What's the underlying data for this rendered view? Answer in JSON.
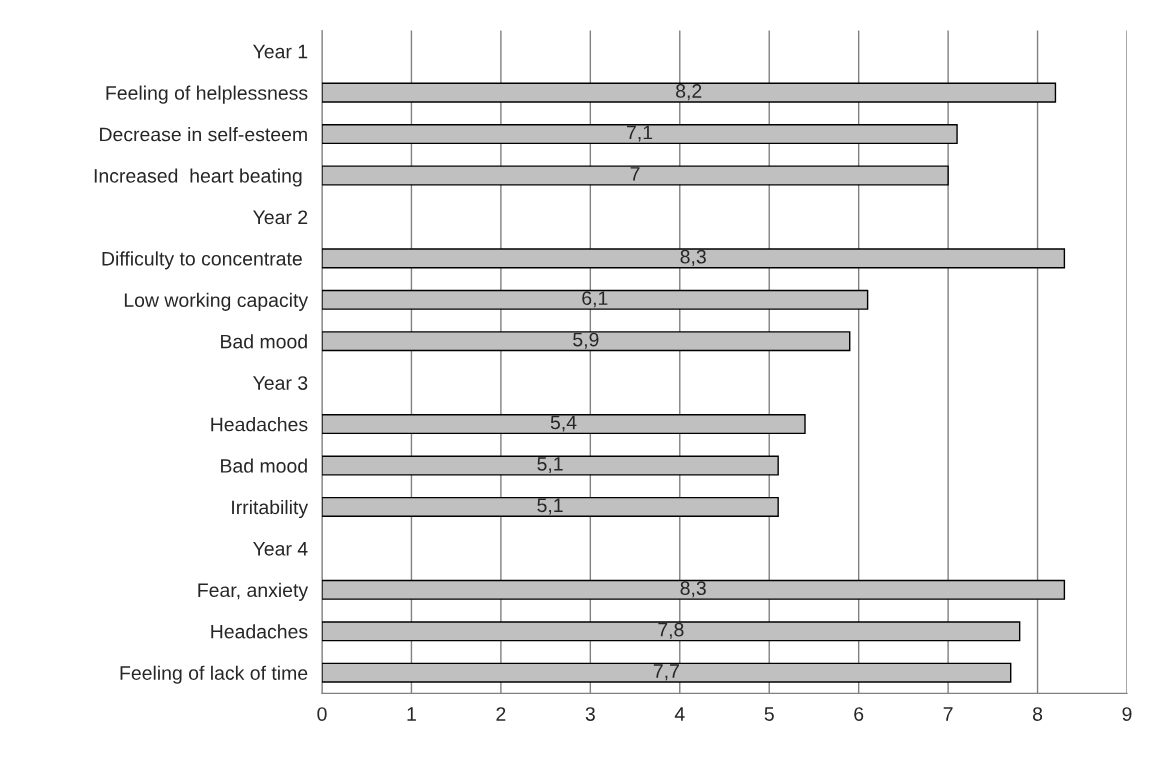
{
  "chart_data": {
    "type": "bar",
    "orientation": "horizontal",
    "categories": [
      "Year 1",
      "Feeling of helplessness",
      "Decrease in self-esteem",
      "Increased  heart beating ",
      "Year 2",
      "Difficulty to concentrate ",
      "Low working capacity",
      "Bad mood",
      "Year 3",
      "Headaches",
      "Bad mood",
      "Irritability",
      "Year 4",
      "Fear, anxiety",
      "Headaches",
      "Feeling of lack of time"
    ],
    "values": [
      null,
      8.2,
      7.1,
      7,
      null,
      8.3,
      6.1,
      5.9,
      null,
      5.4,
      5.1,
      5.1,
      null,
      8.3,
      7.8,
      7.7
    ],
    "value_labels": [
      null,
      "8,2",
      "7,1",
      "7",
      null,
      "8,3",
      "6,1",
      "5,9",
      null,
      "5,4",
      "5,1",
      "5,1",
      null,
      "8,3",
      "7,8",
      "7,7"
    ],
    "color": "#c0c0c0",
    "xlim": [
      0,
      9
    ],
    "xticks": [
      0,
      1,
      2,
      3,
      4,
      5,
      6,
      7,
      8,
      9
    ],
    "grid": "x",
    "legend": false
  }
}
